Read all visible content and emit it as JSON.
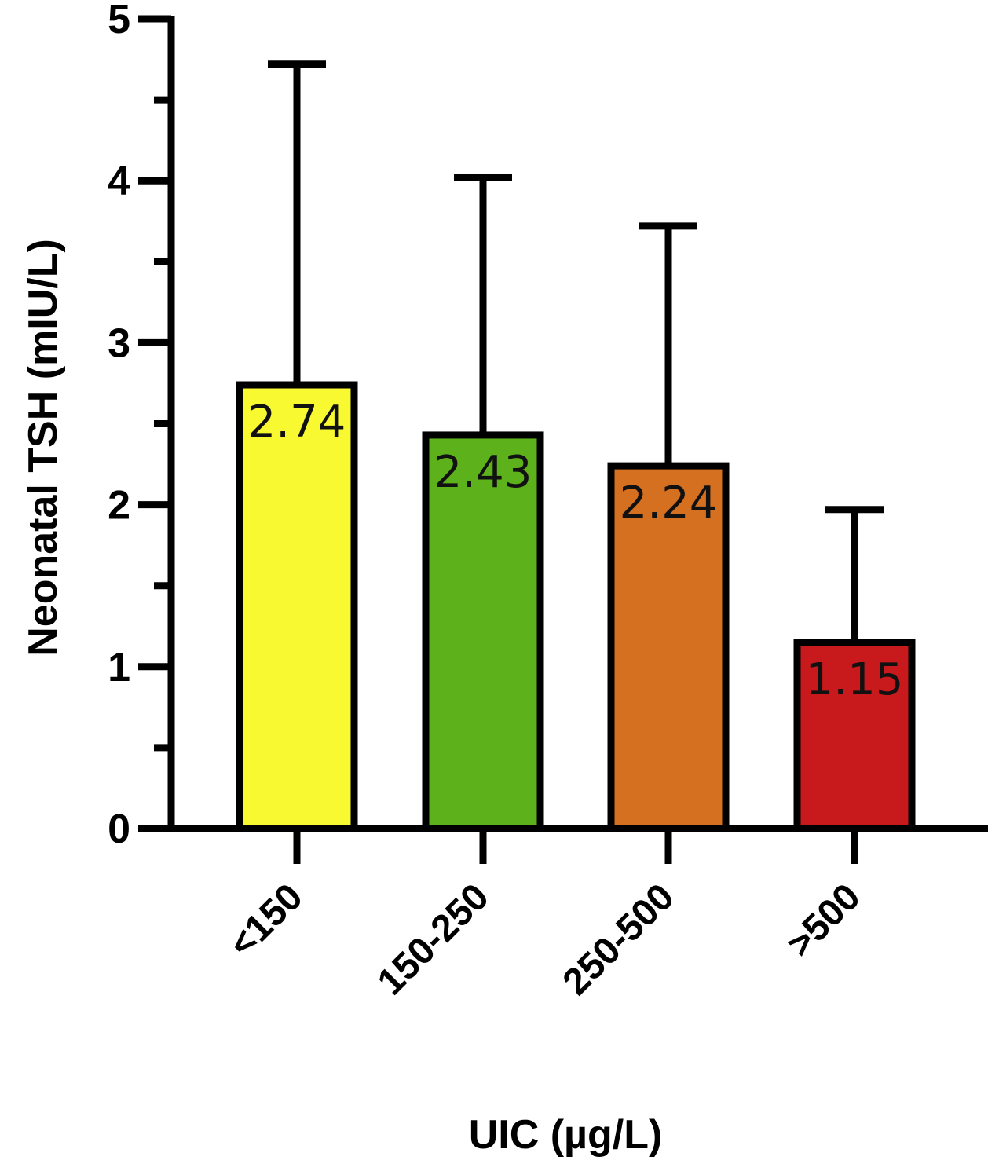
{
  "chart_data": {
    "type": "bar",
    "title": "",
    "xlabel": "UIC (µg/L)",
    "ylabel": "Neonatal TSH (mIU/L)",
    "ylim": [
      0,
      5
    ],
    "yticks": [
      "0",
      "1",
      "2",
      "3",
      "4",
      "5"
    ],
    "categories": [
      "<150",
      "150-250",
      "250-500",
      ">500"
    ],
    "values": [
      2.74,
      2.43,
      2.24,
      1.15
    ],
    "value_labels": [
      "2.74",
      "2.43",
      "2.24",
      "1.15"
    ],
    "error_upper": [
      4.72,
      4.02,
      3.72,
      1.97
    ],
    "colors": [
      "#f9f932",
      "#5db21c",
      "#d57020",
      "#c8191c"
    ],
    "grid": false,
    "legend": "none"
  }
}
